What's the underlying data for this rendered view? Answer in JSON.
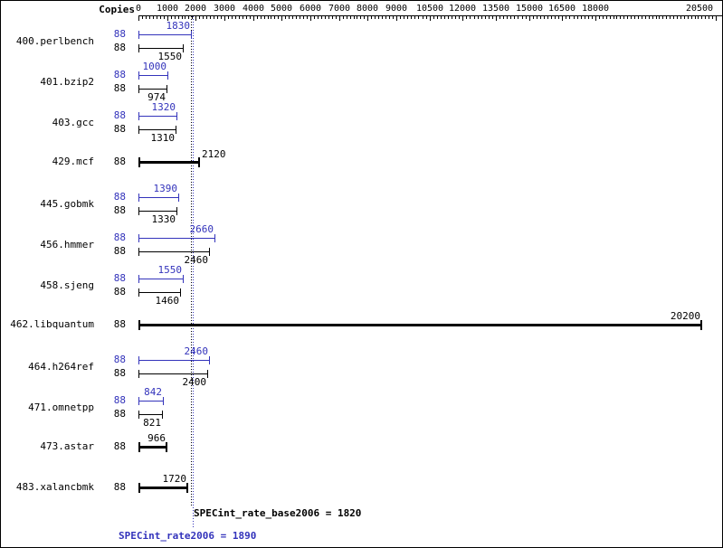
{
  "chart_data": {
    "type": "bar",
    "orientation": "horizontal",
    "copies_header": "Copies",
    "x_axis": {
      "ticks": [
        0,
        1000,
        2000,
        3000,
        4000,
        5000,
        6000,
        7000,
        8000,
        9000,
        10500,
        12000,
        13500,
        15000,
        16500,
        18000,
        20500
      ],
      "scale": "nonlinear-compressed"
    },
    "benchmarks": [
      {
        "name": "400.perlbench",
        "peak": {
          "copies": 88,
          "value": 1830
        },
        "base": {
          "copies": 88,
          "value": 1550
        }
      },
      {
        "name": "401.bzip2",
        "peak": {
          "copies": 88,
          "value": 1000
        },
        "base": {
          "copies": 88,
          "value": 974
        }
      },
      {
        "name": "403.gcc",
        "peak": {
          "copies": 88,
          "value": 1320
        },
        "base": {
          "copies": 88,
          "value": 1310
        }
      },
      {
        "name": "429.mcf",
        "single": {
          "copies": 88,
          "value": 2120,
          "value_label_position": "right-of-end"
        }
      },
      {
        "name": "445.gobmk",
        "peak": {
          "copies": 88,
          "value": 1390
        },
        "base": {
          "copies": 88,
          "value": 1330
        }
      },
      {
        "name": "456.hmmer",
        "peak": {
          "copies": 88,
          "value": 2660
        },
        "base": {
          "copies": 88,
          "value": 2460
        }
      },
      {
        "name": "458.sjeng",
        "peak": {
          "copies": 88,
          "value": 1550
        },
        "base": {
          "copies": 88,
          "value": 1460
        }
      },
      {
        "name": "462.libquantum",
        "single": {
          "copies": 88,
          "value": 20200
        }
      },
      {
        "name": "464.h264ref",
        "peak": {
          "copies": 88,
          "value": 2460
        },
        "base": {
          "copies": 88,
          "value": 2400
        }
      },
      {
        "name": "471.omnetpp",
        "peak": {
          "copies": 88,
          "value": 842
        },
        "base": {
          "copies": 88,
          "value": 821
        }
      },
      {
        "name": "473.astar",
        "single": {
          "copies": 88,
          "value": 966
        }
      },
      {
        "name": "483.xalancbmk",
        "single": {
          "copies": 88,
          "value": 1720
        }
      }
    ],
    "summary": {
      "base_label": "SPECint_rate_base2006 = 1820",
      "base_value": 1820,
      "peak_label": "SPECint_rate2006 = 1890",
      "peak_value": 1890
    },
    "colors": {
      "peak": "#3333bb",
      "base": "#000000",
      "background": "#ffffff"
    }
  }
}
